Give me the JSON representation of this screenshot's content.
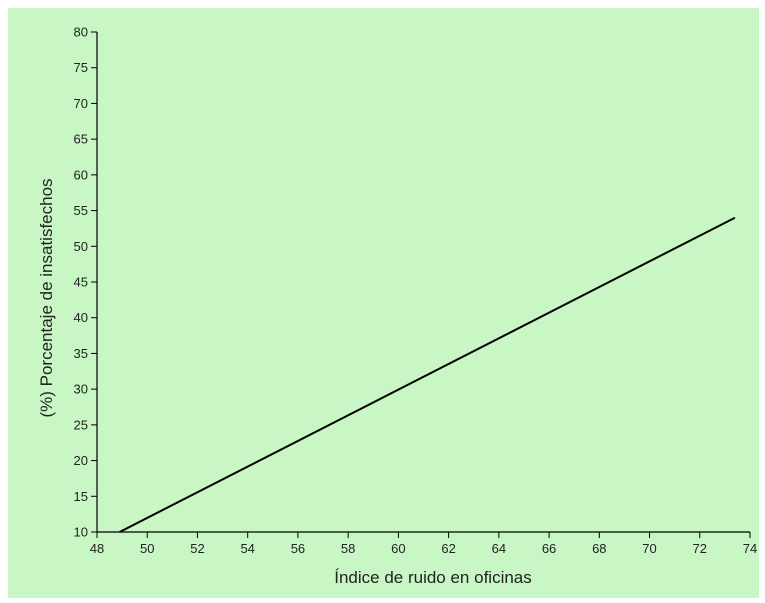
{
  "chart_data": {
    "type": "line",
    "xlabel": "Índice de ruido en oficinas",
    "ylabel": "(%) Porcentaje de insatisfechos",
    "xlim": [
      48,
      74
    ],
    "ylim": [
      10,
      80
    ],
    "x_ticks": [
      "48",
      "50",
      "52",
      "54",
      "56",
      "58",
      "60",
      "62",
      "64",
      "66",
      "68",
      "70",
      "72",
      "74"
    ],
    "y_ticks": [
      "10",
      "15",
      "20",
      "25",
      "30",
      "35",
      "40",
      "45",
      "50",
      "55",
      "60",
      "65",
      "70",
      "75",
      "80"
    ],
    "series": [
      {
        "x": [
          48.9,
          73.4
        ],
        "y": [
          10,
          54
        ]
      }
    ],
    "grid": false,
    "colors": {
      "background": "#c8f7c5",
      "line": "#000000"
    }
  }
}
